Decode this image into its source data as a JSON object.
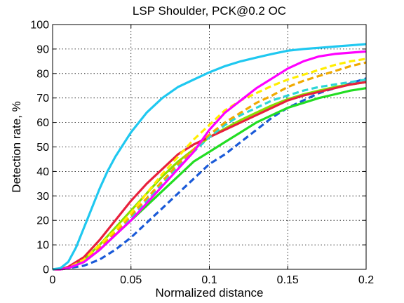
{
  "chart_data": {
    "type": "line",
    "title": "LSP Shoulder, PCK@0.2 OC",
    "xlabel": "Normalized distance",
    "ylabel": "Detection rate, %",
    "xlim": [
      0,
      0.2
    ],
    "ylim": [
      0,
      100
    ],
    "grid": true,
    "xticks": [
      0,
      0.05,
      0.1,
      0.15,
      0.2
    ],
    "xtick_labels": [
      "0",
      "0.05",
      "0.1",
      "0.15",
      "0.2"
    ],
    "yticks": [
      0,
      10,
      20,
      30,
      40,
      50,
      60,
      70,
      80,
      90,
      100
    ],
    "ytick_labels": [
      "0",
      "10",
      "20",
      "30",
      "40",
      "50",
      "60",
      "70",
      "80",
      "90",
      "100"
    ],
    "series": [
      {
        "color": "#1fc8f0",
        "style": "solid",
        "x": [
          0,
          0.005,
          0.01,
          0.015,
          0.02,
          0.025,
          0.03,
          0.035,
          0.04,
          0.045,
          0.05,
          0.06,
          0.07,
          0.08,
          0.09,
          0.1,
          0.11,
          0.12,
          0.13,
          0.14,
          0.15,
          0.16,
          0.17,
          0.18,
          0.19,
          0.2
        ],
        "y": [
          0,
          0.5,
          3,
          9,
          17,
          25,
          33,
          40,
          46,
          51,
          56,
          64,
          70,
          74.5,
          77.5,
          80.5,
          83,
          85,
          86.5,
          88,
          89.3,
          90,
          90.5,
          91,
          91.5,
          92
        ]
      },
      {
        "color": "#ff00ff",
        "style": "solid",
        "x": [
          0,
          0.005,
          0.01,
          0.02,
          0.03,
          0.04,
          0.05,
          0.06,
          0.07,
          0.08,
          0.09,
          0.1,
          0.11,
          0.12,
          0.13,
          0.14,
          0.15,
          0.16,
          0.17,
          0.18,
          0.19,
          0.2
        ],
        "y": [
          0,
          0,
          0.5,
          3,
          8,
          14,
          20,
          27,
          34,
          41,
          48,
          57,
          64,
          69,
          74,
          78,
          82,
          85,
          87,
          88,
          88.5,
          89
        ]
      },
      {
        "color": "#ffee00",
        "style": "dashed",
        "x": [
          0,
          0.005,
          0.01,
          0.02,
          0.03,
          0.04,
          0.05,
          0.06,
          0.07,
          0.08,
          0.09,
          0.1,
          0.11,
          0.12,
          0.13,
          0.14,
          0.15,
          0.16,
          0.17,
          0.18,
          0.19,
          0.2
        ],
        "y": [
          0,
          0,
          0.5,
          4,
          10,
          16,
          23,
          31,
          39,
          46,
          53,
          59,
          65,
          69,
          72,
          75,
          77.5,
          79.5,
          81.5,
          83.5,
          85,
          86
        ]
      },
      {
        "color": "#f0aa00",
        "style": "dashed",
        "x": [
          0,
          0.005,
          0.01,
          0.02,
          0.03,
          0.04,
          0.05,
          0.06,
          0.07,
          0.08,
          0.09,
          0.1,
          0.11,
          0.12,
          0.13,
          0.14,
          0.15,
          0.16,
          0.17,
          0.18,
          0.19,
          0.2
        ],
        "y": [
          0,
          0,
          0.5,
          3.5,
          9,
          15,
          22,
          29,
          36,
          43,
          49,
          55,
          60,
          64,
          68,
          71,
          74.5,
          77,
          79,
          81,
          83,
          84.5
        ]
      },
      {
        "color": "#2dd6d6",
        "style": "dashed",
        "x": [
          0,
          0.005,
          0.01,
          0.02,
          0.03,
          0.04,
          0.05,
          0.06,
          0.07,
          0.08,
          0.09,
          0.1,
          0.11,
          0.12,
          0.13,
          0.14,
          0.15,
          0.16,
          0.17,
          0.18,
          0.19,
          0.2
        ],
        "y": [
          0,
          0,
          0.5,
          3,
          8,
          14,
          21,
          28,
          35,
          42,
          48,
          54,
          59,
          63,
          66,
          69,
          71,
          73,
          74.5,
          75.5,
          76.5,
          77.5
        ]
      },
      {
        "color": "#e8203c",
        "style": "solid",
        "x": [
          0,
          0.005,
          0.01,
          0.02,
          0.03,
          0.04,
          0.05,
          0.06,
          0.07,
          0.08,
          0.09,
          0.1,
          0.11,
          0.12,
          0.13,
          0.14,
          0.15,
          0.16,
          0.17,
          0.18,
          0.19,
          0.2
        ],
        "y": [
          0,
          0,
          1,
          5,
          12,
          20,
          28,
          35,
          41,
          47,
          51,
          54,
          57,
          60,
          63,
          66,
          69,
          71,
          72.5,
          74,
          75.5,
          76.5
        ]
      },
      {
        "color": "#88e000",
        "style": "solid",
        "x": [
          0,
          0.005,
          0.01,
          0.02,
          0.03,
          0.04,
          0.05,
          0.06,
          0.07,
          0.08,
          0.09,
          0.1,
          0.11,
          0.12,
          0.13,
          0.14,
          0.15,
          0.16,
          0.17,
          0.18,
          0.19,
          0.2
        ],
        "y": [
          0,
          0,
          0.5,
          4,
          10,
          17,
          24,
          31,
          38,
          44,
          49,
          54,
          57.5,
          61,
          64,
          67,
          69.5,
          71.5,
          73,
          74.5,
          75.5,
          76.5
        ]
      },
      {
        "color": "#22dd22",
        "style": "solid",
        "x": [
          0,
          0.005,
          0.01,
          0.02,
          0.03,
          0.04,
          0.05,
          0.06,
          0.07,
          0.08,
          0.09,
          0.1,
          0.11,
          0.12,
          0.13,
          0.14,
          0.15,
          0.16,
          0.17,
          0.18,
          0.19,
          0.2
        ],
        "y": [
          0,
          0,
          0.5,
          3,
          8,
          14,
          20,
          26,
          32,
          38,
          44,
          48,
          52,
          56,
          60,
          63,
          66,
          68,
          70,
          71.5,
          73,
          74
        ]
      },
      {
        "color": "#1a5ad8",
        "style": "dashed",
        "x": [
          0,
          0.005,
          0.01,
          0.02,
          0.03,
          0.04,
          0.05,
          0.06,
          0.07,
          0.08,
          0.09,
          0.1,
          0.11,
          0.12,
          0.13,
          0.14,
          0.15,
          0.16,
          0.17,
          0.18,
          0.19,
          0.2
        ],
        "y": [
          0,
          0,
          0.5,
          1.5,
          4,
          8,
          13,
          19,
          25,
          31,
          37,
          43,
          47,
          52,
          57,
          62,
          66,
          69,
          72,
          74,
          76,
          78
        ]
      }
    ]
  }
}
